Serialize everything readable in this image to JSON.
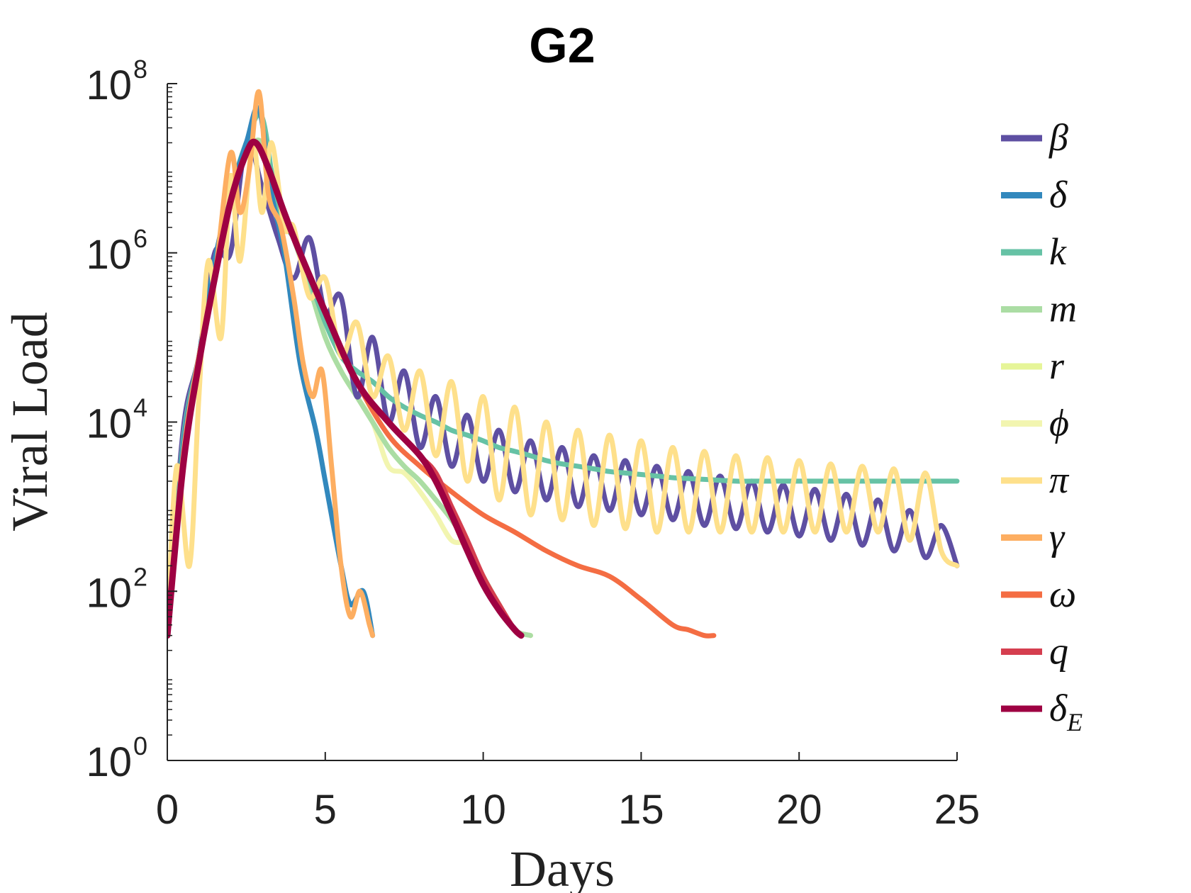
{
  "chart_data": {
    "type": "line",
    "title": "G2",
    "xlabel": "Days",
    "ylabel": "Viral Load",
    "xlim": [
      0,
      25
    ],
    "ylim": [
      1,
      100000000
    ],
    "yscale": "log",
    "xticks": [
      "0",
      "5",
      "10",
      "15",
      "20",
      "25"
    ],
    "yticks": [
      {
        "base": "10",
        "exp": "0"
      },
      {
        "base": "10",
        "exp": "2"
      },
      {
        "base": "10",
        "exp": "4"
      },
      {
        "base": "10",
        "exp": "6"
      },
      {
        "base": "10",
        "exp": "8"
      }
    ],
    "legend_position": "right-outside",
    "grid": false,
    "series": [
      {
        "name": "β",
        "color": "#5e4fa2",
        "x": [
          0,
          0.5,
          1,
          1.5,
          2,
          2.5,
          3,
          3.5,
          4,
          4.5,
          5,
          5.5,
          6,
          6.5,
          7,
          7.5,
          8,
          8.5,
          9,
          9.5,
          10,
          10.5,
          11,
          11.5,
          12,
          12.5,
          13,
          13.5,
          14,
          14.5,
          15,
          15.5,
          16,
          16.5,
          17,
          17.5,
          18,
          18.5,
          19,
          19.5,
          20,
          20.5,
          21,
          21.5,
          22,
          22.5,
          23,
          23.5,
          24,
          24.5,
          25
        ],
        "y": [
          30,
          8000,
          60000,
          1000000,
          1000000,
          20000000,
          6000000,
          1500000,
          500000,
          1500000,
          200000,
          300000,
          20000,
          100000,
          10000,
          40000,
          5000,
          20000,
          3000,
          12000,
          2000,
          8000,
          1500,
          6000,
          1200,
          5000,
          1000,
          4000,
          900,
          3500,
          800,
          3000,
          700,
          2600,
          600,
          2300,
          550,
          2000,
          500,
          1800,
          450,
          1600,
          400,
          1400,
          350,
          1200,
          300,
          900,
          250,
          600,
          200
        ]
      },
      {
        "name": "δ",
        "color": "#3288bd",
        "x": [
          0,
          0.5,
          1,
          1.5,
          2,
          2.5,
          2.9,
          3.3,
          3.7,
          4.2,
          4.7,
          5,
          5.5,
          5.8,
          6.2,
          6.5
        ],
        "y": [
          30,
          5000,
          60000,
          800000,
          5000000,
          20000000,
          50000000,
          5000000,
          1000000,
          50000,
          8000,
          2000,
          200,
          70,
          100,
          30
        ]
      },
      {
        "name": "k",
        "color": "#66c2a5",
        "x": [
          0,
          0.5,
          1,
          1.5,
          2,
          2.5,
          3,
          3.5,
          4,
          4.5,
          5,
          5.5,
          6,
          6.5,
          7,
          7.5,
          8,
          8.5,
          9,
          9.5,
          10,
          10.5,
          11,
          11.5,
          12,
          12.5,
          13,
          13.5,
          14,
          14.5,
          15,
          15.5,
          16,
          16.5,
          17,
          17.5,
          18,
          18.5,
          19,
          19.5,
          20,
          20.5,
          21,
          21.5,
          22,
          22.5,
          23,
          23.5,
          24,
          24.5,
          25
        ],
        "y": [
          30,
          6000,
          60000,
          800000,
          5000000,
          20000000,
          40000000,
          3000000,
          1500000,
          500000,
          150000,
          60000,
          40000,
          30000,
          20000,
          15000,
          12000,
          10000,
          8000,
          7000,
          6000,
          5000,
          4500,
          4000,
          3500,
          3200,
          3000,
          2800,
          2600,
          2500,
          2400,
          2300,
          2200,
          2150,
          2100,
          2050,
          2000,
          2000,
          2000,
          2000,
          2000,
          2000,
          2000,
          2000,
          2000,
          2000,
          2000,
          2000,
          2000,
          2000,
          2000
        ]
      },
      {
        "name": "m",
        "color": "#abdda4",
        "x": [
          0,
          0.5,
          1,
          1.5,
          2,
          2.5,
          3,
          3.5,
          4,
          4.5,
          5,
          5.5,
          6,
          6.5,
          7,
          7.5,
          8,
          8.5,
          9,
          9.5,
          10,
          10.5,
          11,
          11.5
        ],
        "y": [
          30,
          4000,
          50000,
          700000,
          4000000,
          15000000,
          20000000,
          5000000,
          1500000,
          400000,
          100000,
          40000,
          20000,
          10000,
          5000,
          3000,
          2000,
          1200,
          700,
          350,
          150,
          70,
          35,
          30
        ]
      },
      {
        "name": "r",
        "color": "#e6f598",
        "x": [
          0,
          0.5,
          1,
          1.5,
          2,
          2.5,
          3,
          3.5,
          4,
          4.5,
          5,
          5.5,
          6,
          6.5,
          7,
          7.5,
          8,
          8.5,
          9,
          9.5,
          10,
          10.5,
          11,
          11.5
        ],
        "y": [
          30,
          4000,
          50000,
          700000,
          4000000,
          15000000,
          20000000,
          5000000,
          1500000,
          400000,
          100000,
          40000,
          20000,
          10000,
          5000,
          3000,
          2000,
          1200,
          700,
          350,
          150,
          70,
          35,
          30
        ]
      },
      {
        "name": "ϕ",
        "color": "#f2f5b0",
        "x": [
          0,
          0.5,
          1,
          1.5,
          2,
          2.5,
          3,
          3.5,
          4,
          4.5,
          5,
          5.5,
          6,
          6.5,
          7,
          7.5,
          8,
          8.5,
          9,
          9.5,
          10,
          10.5,
          11,
          11.5
        ],
        "y": [
          30,
          4000,
          50000,
          700000,
          4000000,
          15000000,
          20000000,
          5000000,
          1500000,
          400000,
          100000,
          40000,
          20000,
          10000,
          3000,
          2500,
          1500,
          800,
          400,
          350,
          150,
          70,
          35,
          30
        ]
      },
      {
        "name": "π",
        "color": "#fee08b",
        "x": [
          0,
          0.3,
          0.7,
          1,
          1.3,
          1.7,
          2,
          2.3,
          2.7,
          3,
          3.3,
          3.7,
          4,
          4.5,
          5,
          5.5,
          6,
          6.5,
          7,
          7.5,
          8,
          8.5,
          9,
          9.5,
          10,
          10.5,
          11,
          11.5,
          12,
          12.5,
          13,
          13.5,
          14,
          14.5,
          15,
          15.5,
          16,
          16.5,
          17,
          17.5,
          18,
          18.5,
          19,
          19.5,
          20,
          20.5,
          21,
          21.5,
          22,
          22.5,
          23,
          23.5,
          24,
          24.5,
          25
        ],
        "y": [
          30,
          3000,
          200,
          20000,
          800000,
          100000,
          8000000,
          800000,
          20000000,
          3000000,
          20000000,
          2000000,
          2000000,
          300000,
          500000,
          60000,
          150000,
          20000,
          60000,
          8000,
          40000,
          4000,
          30000,
          2000,
          20000,
          1200,
          15000,
          800,
          10000,
          700,
          8000,
          600,
          7000,
          550,
          6000,
          500,
          5000,
          500,
          4500,
          500,
          4000,
          500,
          3800,
          500,
          3500,
          500,
          3200,
          500,
          3000,
          500,
          2800,
          400,
          2500,
          300,
          200
        ]
      },
      {
        "name": "γ",
        "color": "#fdae61",
        "x": [
          0,
          0.5,
          1,
          1.5,
          2,
          2.3,
          2.6,
          2.9,
          3.2,
          3.6,
          4,
          4.3,
          4.6,
          4.9,
          5.2,
          5.5,
          5.8,
          6.1,
          6.4,
          6.5
        ],
        "y": [
          30,
          4000,
          60000,
          500000,
          15000000,
          3000000,
          10000000,
          80000000,
          5000000,
          2000000,
          300000,
          50000,
          20000,
          40000,
          3000,
          200,
          50,
          100,
          40,
          30
        ]
      },
      {
        "name": "ω",
        "color": "#f46d43",
        "x": [
          0,
          0.5,
          1,
          1.5,
          2,
          2.5,
          2.8,
          3.2,
          3.7,
          4.2,
          5,
          6,
          7,
          8,
          9,
          10,
          11,
          12,
          13,
          14,
          15,
          16,
          16.5,
          17,
          17.3
        ],
        "y": [
          30,
          3000,
          50000,
          500000,
          4000000,
          15000000,
          20000000,
          10000000,
          3000000,
          1000000,
          200000,
          30000,
          7000,
          3000,
          1500,
          800,
          500,
          300,
          200,
          150,
          80,
          40,
          35,
          30,
          30
        ]
      },
      {
        "name": "q",
        "color": "#d53e4f",
        "x": [
          0,
          0.5,
          1,
          1.5,
          2,
          2.5,
          2.8,
          3.2,
          3.7,
          4.2,
          5,
          6,
          7,
          8,
          8.5,
          9,
          9.5,
          10,
          10.5,
          11,
          11.2
        ],
        "y": [
          30,
          3000,
          50000,
          500000,
          4000000,
          15000000,
          20000000,
          10000000,
          3000000,
          1000000,
          200000,
          30000,
          10000,
          4000,
          2500,
          1000,
          400,
          150,
          70,
          35,
          30
        ]
      },
      {
        "name": "δ_E",
        "color": "#9e0142",
        "x": [
          0,
          0.5,
          1,
          1.5,
          2,
          2.5,
          2.8,
          3.2,
          3.7,
          4.2,
          5,
          6,
          7,
          8,
          8.5,
          9,
          9.5,
          10,
          10.5,
          11,
          11.2
        ],
        "y": [
          30,
          3000,
          50000,
          500000,
          4000000,
          15000000,
          20000000,
          10000000,
          3000000,
          1000000,
          200000,
          30000,
          10000,
          4000,
          2000,
          800,
          300,
          120,
          60,
          35,
          30
        ]
      }
    ]
  }
}
